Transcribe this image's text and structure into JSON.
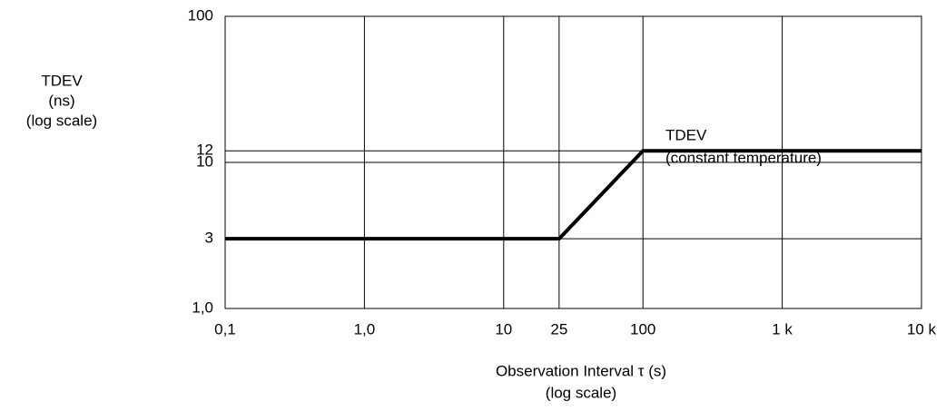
{
  "chart_data": {
    "type": "line",
    "y_label": [
      "TDEV",
      "(ns)",
      "(log scale)"
    ],
    "x_label": [
      "Observation Interval τ (s)",
      "(log scale)"
    ],
    "annotation": [
      "TDEV",
      "(constant temperature)"
    ],
    "x": [
      0.1,
      25,
      100,
      10000
    ],
    "series": [
      {
        "color": "#000000",
        "values": [
          3,
          3,
          12,
          12
        ]
      }
    ],
    "xlim": [
      0.1,
      10000
    ],
    "xticks": [
      {
        "value": 0.1,
        "label": "0,1"
      },
      {
        "value": 1,
        "label": "1,0"
      },
      10,
      25,
      100,
      {
        "value": 1000,
        "label": "1 k"
      },
      {
        "value": 10000,
        "label": "10 k"
      }
    ],
    "ylim": [
      1,
      100
    ],
    "yticks": [
      {
        "value": 1,
        "label": "1,0"
      },
      3,
      10,
      12,
      100
    ],
    "log_x": true,
    "log_y": true,
    "grid": true
  }
}
